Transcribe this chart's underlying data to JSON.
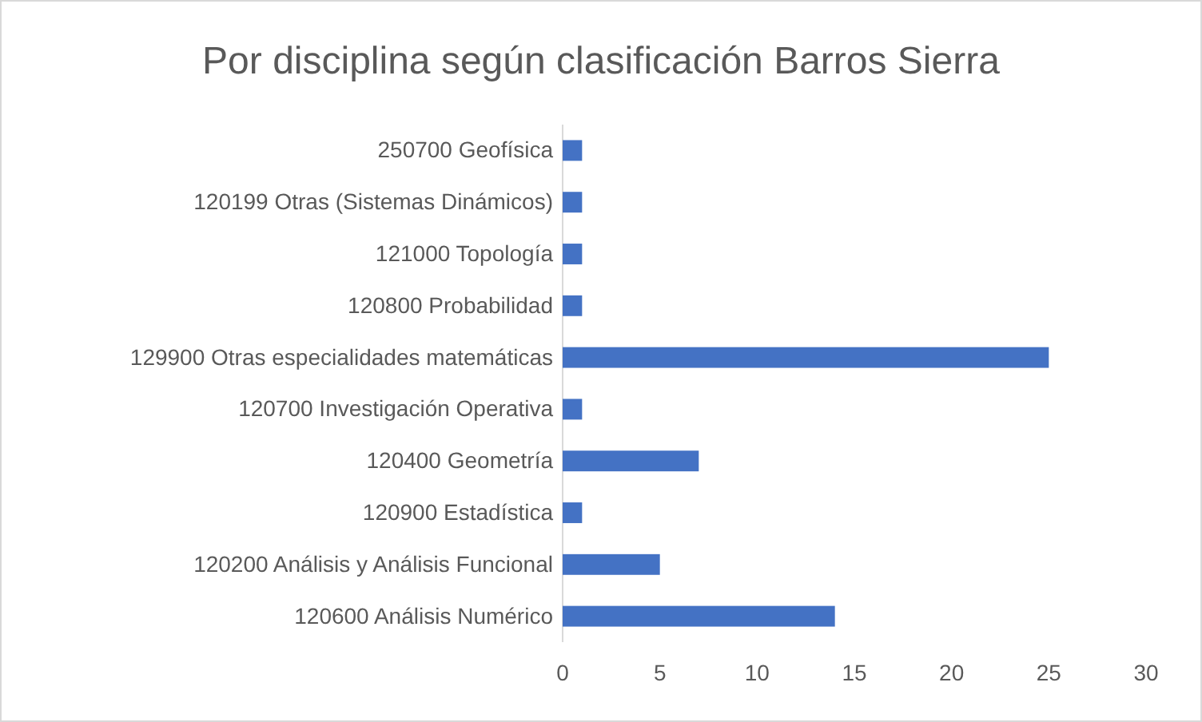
{
  "chart_data": {
    "type": "bar",
    "orientation": "horizontal",
    "title": "Por disciplina según clasificación Barros Sierra",
    "categories": [
      "250700 Geofísica",
      "120199 Otras (Sistemas Dinámicos)",
      "121000 Topología",
      "120800 Probabilidad",
      "129900 Otras especialidades matemáticas",
      "120700 Investigación Operativa",
      "120400 Geometría",
      "120900 Estadística",
      "120200 Análisis y Análisis Funcional",
      "120600 Análisis Numérico"
    ],
    "values": [
      1,
      1,
      1,
      1,
      25,
      1,
      7,
      1,
      5,
      14
    ],
    "color": "#4472c4",
    "xlim": [
      0,
      30
    ],
    "xticks": [
      0,
      5,
      10,
      15,
      20,
      25,
      30
    ],
    "grid": false
  }
}
